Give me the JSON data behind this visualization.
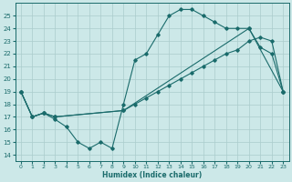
{
  "xlabel": "Humidex (Indice chaleur)",
  "bg_color": "#cce8e8",
  "grid_color": "#aacccc",
  "line_color": "#1a6b6b",
  "xlim": [
    -0.5,
    23.5
  ],
  "ylim": [
    13.5,
    26.0
  ],
  "yticks": [
    14,
    15,
    16,
    17,
    18,
    19,
    20,
    21,
    22,
    23,
    24,
    25
  ],
  "xticks": [
    0,
    1,
    2,
    3,
    4,
    5,
    6,
    7,
    8,
    9,
    10,
    11,
    12,
    13,
    14,
    15,
    16,
    17,
    18,
    19,
    20,
    21,
    22,
    23
  ],
  "line1_x": [
    0,
    1,
    2,
    3,
    4,
    5,
    6,
    7,
    8,
    9,
    10,
    11,
    12,
    13,
    14,
    15,
    16,
    17,
    18,
    19,
    20,
    21,
    22,
    23
  ],
  "line1_y": [
    19,
    17,
    17.3,
    16.8,
    16.2,
    15.0,
    14.5,
    15.0,
    14.5,
    18.0,
    21.5,
    22.0,
    23.5,
    25.0,
    25.5,
    25.5,
    25.0,
    24.5,
    24.0,
    24.0,
    24.0,
    22.5,
    22.0,
    19.0
  ],
  "line2_x": [
    0,
    1,
    2,
    3,
    9,
    10,
    11,
    12,
    13,
    14,
    15,
    16,
    17,
    18,
    19,
    20,
    21,
    22,
    23
  ],
  "line2_y": [
    19,
    17,
    17.3,
    17.0,
    17.5,
    18.0,
    18.5,
    19.0,
    19.5,
    20.0,
    20.5,
    21.0,
    21.5,
    22.0,
    22.3,
    23.0,
    23.3,
    23.0,
    19.0
  ],
  "line3_x": [
    0,
    1,
    2,
    3,
    9,
    20,
    23
  ],
  "line3_y": [
    19,
    17,
    17.3,
    17.0,
    17.5,
    24.0,
    19.0
  ]
}
